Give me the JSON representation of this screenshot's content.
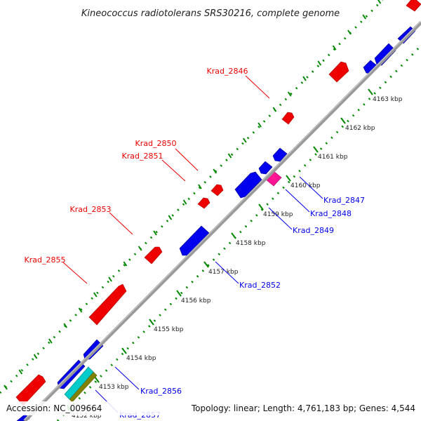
{
  "title": "Kineococcus radiotolerans SRS30216, complete genome",
  "accession": "Accession: NC_009664",
  "topology": "Topology: linear; Length: 4,761,183 bp; Genes: 4,544",
  "colors": {
    "forward_gene": "#ee0000",
    "reverse_gene": "#0000ee",
    "pink_gene": "#ff1493",
    "cyan_gene": "#00cccc",
    "olive_gene": "#808000",
    "axis": "#999999",
    "dots": "#008800"
  },
  "ticks": [
    "4152 kbp",
    "4153 kbp",
    "4154 kbp",
    "4155 kbp",
    "4156 kbp",
    "4157 kbp",
    "4158 kbp",
    "4159 kbp",
    "4160 kbp",
    "4161 kbp",
    "4162 kbp",
    "4163 kbp"
  ],
  "genes_forward": [
    {
      "label": "Krad_2846"
    },
    {
      "label": "Krad_2850"
    },
    {
      "label": "Krad_2851"
    },
    {
      "label": "Krad_2853"
    },
    {
      "label": "Krad_2855"
    }
  ],
  "genes_reverse": [
    {
      "label": "Krad_2847"
    },
    {
      "label": "Krad_2848"
    },
    {
      "label": "Krad_2849"
    },
    {
      "label": "Krad_2852"
    },
    {
      "label": "Krad_2856"
    },
    {
      "label": "Krad_2857"
    }
  ]
}
